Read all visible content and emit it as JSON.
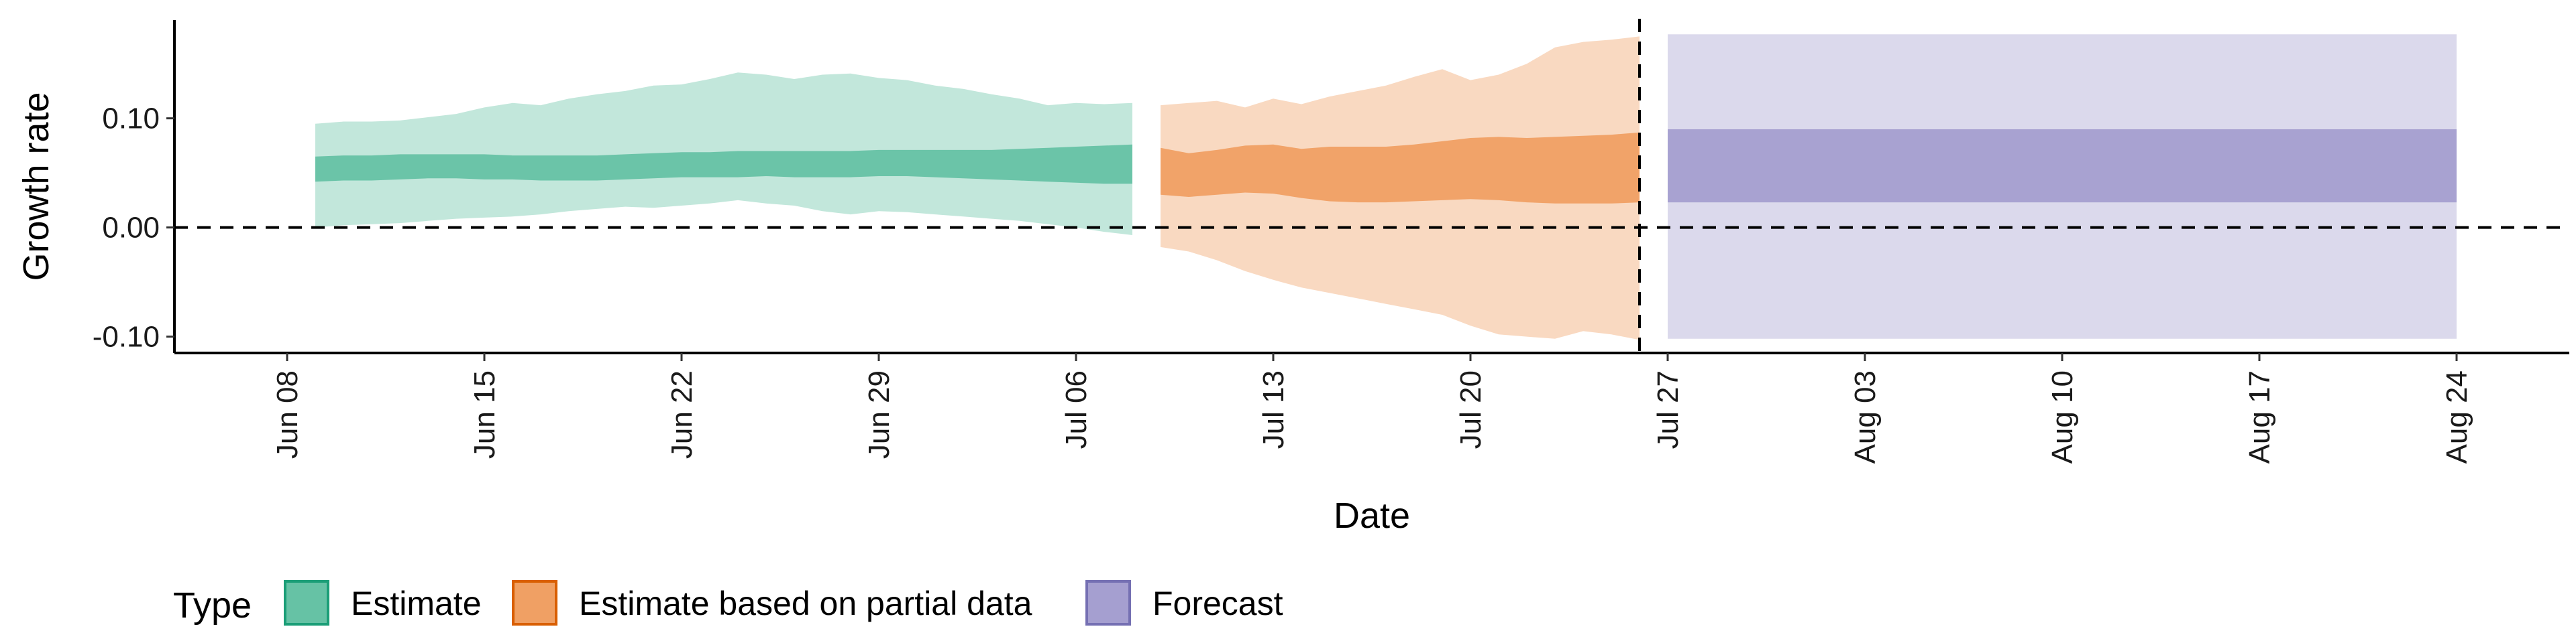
{
  "chart_data": {
    "type": "area",
    "xlabel": "Date",
    "ylabel": "Growth rate",
    "x_range": [
      "2021-06-04",
      "2021-08-28"
    ],
    "ylim": [
      -0.115,
      0.19
    ],
    "y_ticks": [
      -0.1,
      0.0,
      0.1
    ],
    "y_tick_labels": [
      "-0.10",
      "0.00",
      "0.10"
    ],
    "x_ticks": [
      "2021-06-08",
      "2021-06-15",
      "2021-06-22",
      "2021-06-29",
      "2021-07-06",
      "2021-07-13",
      "2021-07-20",
      "2021-07-27",
      "2021-08-03",
      "2021-08-10",
      "2021-08-17",
      "2021-08-24"
    ],
    "x_tick_labels": [
      "Jun 08",
      "Jun 15",
      "Jun 22",
      "Jun 29",
      "Jul 06",
      "Jul 13",
      "Jul 20",
      "Jul 27",
      "Aug 03",
      "Aug 10",
      "Aug 17",
      "Aug 24"
    ],
    "hline": 0,
    "vline": "2021-07-26",
    "grid": false,
    "legend": {
      "title": "Type",
      "position": "bottom-left",
      "entries": [
        {
          "label": "Estimate",
          "fill": "#66c2a5",
          "border": "#1b9e77"
        },
        {
          "label": "Estimate based on partial data",
          "fill": "#f0a064",
          "border": "#d95f02"
        },
        {
          "label": "Forecast",
          "fill": "#a59fd0",
          "border": "#7570b3"
        }
      ]
    },
    "series": [
      {
        "name": "Estimate",
        "color": "#66c2a5",
        "x": [
          "2021-06-09",
          "2021-06-10",
          "2021-06-11",
          "2021-06-12",
          "2021-06-13",
          "2021-06-14",
          "2021-06-15",
          "2021-06-16",
          "2021-06-17",
          "2021-06-18",
          "2021-06-19",
          "2021-06-20",
          "2021-06-21",
          "2021-06-22",
          "2021-06-23",
          "2021-06-24",
          "2021-06-25",
          "2021-06-26",
          "2021-06-27",
          "2021-06-28",
          "2021-06-29",
          "2021-06-30",
          "2021-07-01",
          "2021-07-02",
          "2021-07-03",
          "2021-07-04",
          "2021-07-05",
          "2021-07-06",
          "2021-07-07",
          "2021-07-08"
        ],
        "outer_lower": [
          0.0,
          0.002,
          0.003,
          0.004,
          0.006,
          0.008,
          0.009,
          0.01,
          0.012,
          0.015,
          0.017,
          0.019,
          0.018,
          0.02,
          0.022,
          0.025,
          0.022,
          0.02,
          0.015,
          0.012,
          0.015,
          0.014,
          0.012,
          0.01,
          0.008,
          0.006,
          0.003,
          0.0,
          -0.004,
          -0.007
        ],
        "outer_upper": [
          0.095,
          0.097,
          0.097,
          0.098,
          0.101,
          0.104,
          0.11,
          0.114,
          0.112,
          0.118,
          0.122,
          0.125,
          0.13,
          0.131,
          0.136,
          0.142,
          0.14,
          0.136,
          0.14,
          0.141,
          0.137,
          0.135,
          0.13,
          0.127,
          0.122,
          0.118,
          0.112,
          0.114,
          0.113,
          0.114
        ],
        "inner_lower": [
          0.042,
          0.043,
          0.043,
          0.044,
          0.045,
          0.045,
          0.044,
          0.044,
          0.043,
          0.043,
          0.043,
          0.044,
          0.045,
          0.046,
          0.046,
          0.046,
          0.047,
          0.046,
          0.046,
          0.046,
          0.047,
          0.047,
          0.046,
          0.045,
          0.044,
          0.043,
          0.042,
          0.041,
          0.04,
          0.04
        ],
        "inner_upper": [
          0.065,
          0.066,
          0.066,
          0.067,
          0.067,
          0.067,
          0.067,
          0.066,
          0.066,
          0.066,
          0.066,
          0.067,
          0.068,
          0.069,
          0.069,
          0.07,
          0.07,
          0.07,
          0.07,
          0.07,
          0.071,
          0.071,
          0.071,
          0.071,
          0.071,
          0.072,
          0.073,
          0.074,
          0.075,
          0.076
        ]
      },
      {
        "name": "Estimate based on partial data",
        "color": "#f0a064",
        "x": [
          "2021-07-09",
          "2021-07-10",
          "2021-07-11",
          "2021-07-12",
          "2021-07-13",
          "2021-07-14",
          "2021-07-15",
          "2021-07-16",
          "2021-07-17",
          "2021-07-18",
          "2021-07-19",
          "2021-07-20",
          "2021-07-21",
          "2021-07-22",
          "2021-07-23",
          "2021-07-24",
          "2021-07-25",
          "2021-07-26"
        ],
        "outer_lower": [
          -0.018,
          -0.022,
          -0.03,
          -0.04,
          -0.048,
          -0.055,
          -0.06,
          -0.065,
          -0.07,
          -0.075,
          -0.08,
          -0.09,
          -0.098,
          -0.1,
          -0.102,
          -0.095,
          -0.098,
          -0.103
        ],
        "outer_upper": [
          0.112,
          0.114,
          0.116,
          0.11,
          0.118,
          0.113,
          0.12,
          0.125,
          0.13,
          0.138,
          0.145,
          0.135,
          0.14,
          0.15,
          0.165,
          0.17,
          0.172,
          0.175
        ],
        "inner_lower": [
          0.03,
          0.028,
          0.03,
          0.032,
          0.031,
          0.027,
          0.024,
          0.023,
          0.023,
          0.024,
          0.025,
          0.026,
          0.025,
          0.023,
          0.022,
          0.022,
          0.022,
          0.023
        ],
        "inner_upper": [
          0.073,
          0.068,
          0.071,
          0.075,
          0.076,
          0.072,
          0.074,
          0.074,
          0.074,
          0.076,
          0.079,
          0.082,
          0.083,
          0.082,
          0.083,
          0.084,
          0.085,
          0.087
        ]
      },
      {
        "name": "Forecast",
        "color": "#a59fd0",
        "x": [
          "2021-07-27",
          "2021-08-24"
        ],
        "outer_lower": [
          -0.102,
          -0.102
        ],
        "outer_upper": [
          0.177,
          0.177
        ],
        "inner_lower": [
          0.023,
          0.023
        ],
        "inner_upper": [
          0.09,
          0.09
        ]
      }
    ]
  }
}
